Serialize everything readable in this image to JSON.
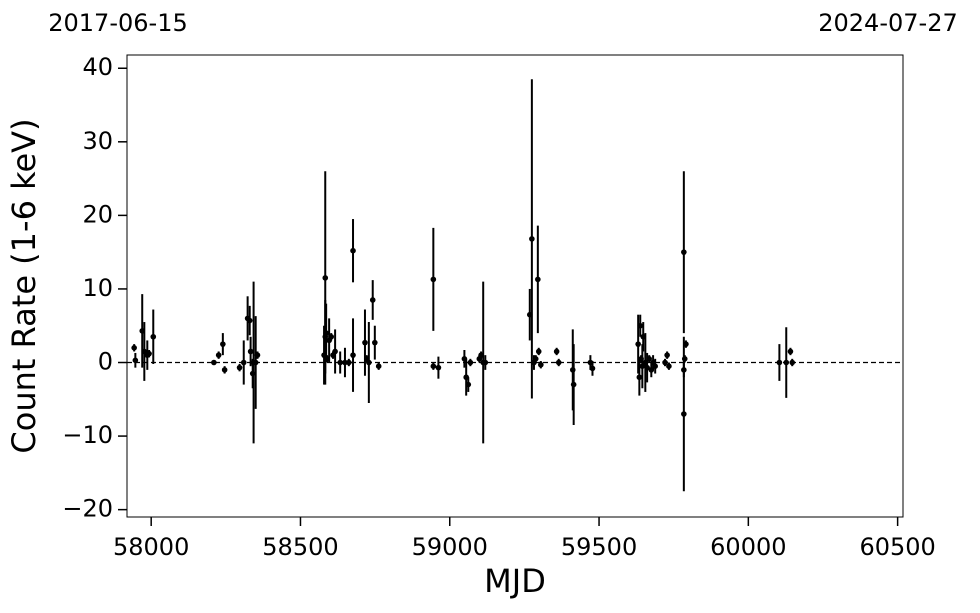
{
  "chart_data": {
    "type": "errorbar",
    "annotations": [
      "2017-06-15",
      "2024-07-27"
    ],
    "xlabel": "MJD",
    "ylabel": "Count Rate (1-6 keV)",
    "color": "#000000",
    "hline": 0,
    "xlim": [
      57919,
      60518
    ],
    "ylim": [
      -21,
      41.8
    ],
    "xticks": [
      58000,
      58500,
      59000,
      59500,
      60000,
      60500
    ],
    "yticks": [
      {
        "value": -20,
        "label": "−20"
      },
      {
        "value": -10,
        "label": "−10"
      },
      0,
      10,
      20,
      30,
      40
    ],
    "x": [
      57943,
      57947,
      57970,
      57977,
      57987,
      57993,
      58007,
      58210,
      58226,
      58240,
      58246,
      58296,
      58310,
      58323,
      58330,
      58333,
      58340,
      58343,
      58350,
      58356,
      58579,
      58583,
      58583,
      58586,
      58589,
      58596,
      58603,
      58609,
      58616,
      58633,
      58649,
      58662,
      58676,
      58676,
      58716,
      58722,
      58729,
      58742,
      58749,
      58762,
      58945,
      58945,
      58962,
      59049,
      59055,
      59062,
      59069,
      59099,
      59105,
      59112,
      59119,
      59268,
      59275,
      59282,
      59288,
      59295,
      59298,
      59305,
      59358,
      59365,
      59412,
      59415,
      59471,
      59478,
      59631,
      59635,
      59638,
      59641,
      59645,
      59648,
      59655,
      59661,
      59668,
      59675,
      59681,
      59688,
      59721,
      59728,
      59734,
      59784,
      59784,
      59784,
      59787,
      59791,
      60104,
      60127,
      60141,
      60147
    ],
    "values": [
      2,
      0.3,
      4.3,
      1.5,
      1,
      1.2,
      3.5,
      0,
      1,
      2.5,
      -1,
      -0.7,
      0,
      6,
      5.7,
      1.5,
      -1.5,
      0,
      0,
      1,
      1,
      11.5,
      3.5,
      4,
      0.5,
      3,
      3.5,
      1,
      1.5,
      0,
      0,
      0,
      15.2,
      1,
      2.7,
      0.5,
      0,
      8.5,
      2.7,
      -0.5,
      11.3,
      -0.5,
      -0.7,
      0.5,
      -2,
      -3,
      0,
      0.5,
      1,
      0,
      0,
      6.5,
      16.8,
      0,
      0.5,
      11.3,
      1.5,
      -0.3,
      1.5,
      0,
      -1,
      -3,
      0,
      -0.8,
      2.5,
      -2,
      5,
      0.5,
      -0.5,
      3.5,
      0,
      -0.7,
      0.5,
      -1,
      0,
      -0.5,
      0,
      1,
      -0.5,
      15,
      -7,
      -1,
      0.5,
      2.5,
      0,
      0,
      1.5,
      0
    ],
    "errors": [
      0.5,
      1,
      5,
      4,
      2,
      0.5,
      3.7,
      0.3,
      0.5,
      1.5,
      0.5,
      0.5,
      3,
      3,
      2,
      2,
      2,
      11,
      6.3,
      0.5,
      4,
      14.5,
      5,
      4,
      0.5,
      3,
      0.5,
      0.5,
      3,
      1.5,
      2,
      0.5,
      4.3,
      5,
      4.5,
      0.5,
      5.5,
      2.7,
      2.3,
      0.5,
      7,
      0.5,
      1.5,
      1.2,
      2.5,
      1,
      0.5,
      0.5,
      0.5,
      11,
      1,
      3.5,
      21.7,
      1,
      0.5,
      7.3,
      0.5,
      0.5,
      0.5,
      0.5,
      5.5,
      5.5,
      1,
      1,
      4,
      2.5,
      1.5,
      0.5,
      3,
      2,
      4,
      2,
      0.5,
      1,
      1,
      1,
      0.5,
      0.5,
      0.5,
      11,
      10.5,
      1,
      0.5,
      0.5,
      2.5,
      4.8,
      0.5,
      0.5
    ]
  }
}
